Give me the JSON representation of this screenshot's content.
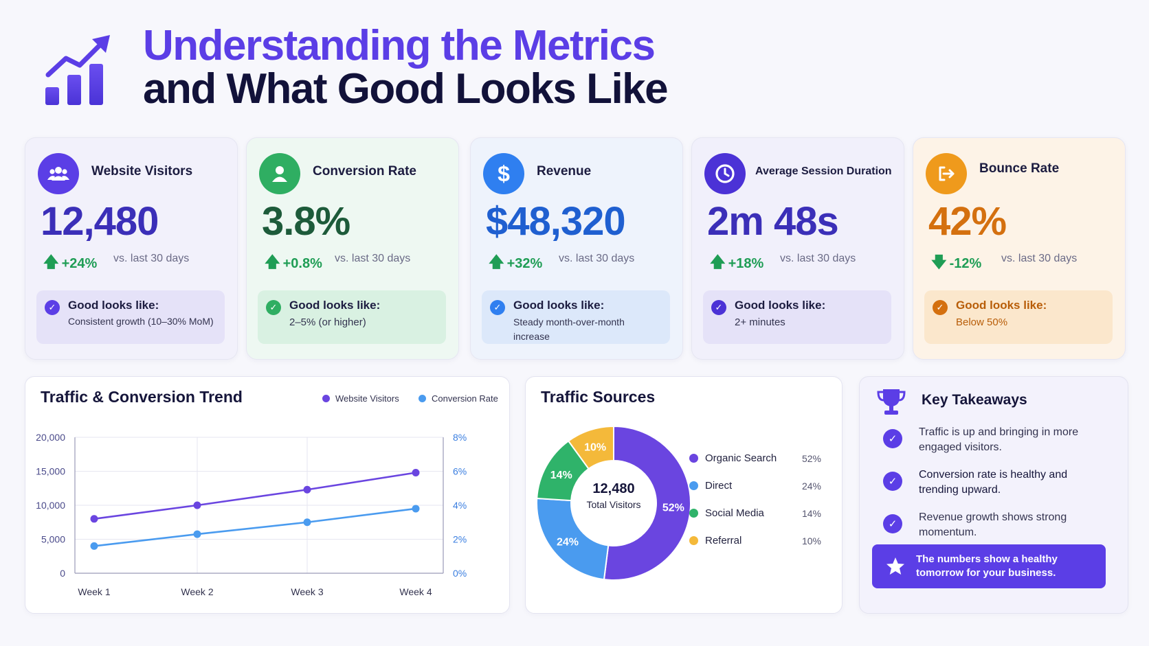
{
  "header": {
    "title_line1": "Understanding the Metrics",
    "title_line2": "and What Good Looks Like",
    "logo_icon": "chart-growth-icon"
  },
  "colors": {
    "accent": "#5b3ee6",
    "visitors_series": "#6a45e0",
    "conversion_series": "#4a9bef",
    "organic": "#6a45e0",
    "direct": "#4a9bef",
    "social": "#2fb36a",
    "referral": "#f4b93a"
  },
  "metrics": [
    {
      "name": "Website Visitors",
      "value": "12,480",
      "change": "+24%",
      "direction": "up",
      "comparison": "vs. last 30 days",
      "good_title": "Good looks like:",
      "good_desc": "Consistent growth (10–30% MoM)",
      "icon": "users-icon"
    },
    {
      "name": "Conversion Rate",
      "value": "3.8%",
      "change": "+0.8%",
      "direction": "up",
      "comparison": "vs. last 30 days",
      "good_title": "Good looks like:",
      "good_desc": "2–5% (or higher)",
      "icon": "user-icon"
    },
    {
      "name": "Revenue",
      "value": "$48,320",
      "change": "+32%",
      "direction": "up",
      "comparison": "vs. last 30 days",
      "good_title": "Good looks like:",
      "good_desc": "Steady month-over-month increase",
      "icon": "dollar-icon"
    },
    {
      "name": "Average Session Duration",
      "value": "2m 48s",
      "change": "+18%",
      "direction": "up",
      "comparison": "vs. last 30 days",
      "good_title": "Good looks like:",
      "good_desc": "2+ minutes",
      "icon": "clock-icon"
    },
    {
      "name": "Bounce Rate",
      "value": "42%",
      "change": "-12%",
      "direction": "down",
      "comparison": "vs. last 30 days",
      "good_title": "Good looks like:",
      "good_desc": "Below 50%",
      "icon": "exit-icon"
    }
  ],
  "trend": {
    "title": "Traffic & Conversion Trend",
    "legend": [
      "Website Visitors",
      "Conversion Rate"
    ],
    "y_left_ticks": [
      "20,000",
      "15,000",
      "10,000",
      "5,000",
      "0"
    ],
    "y_right_ticks": [
      "8%",
      "6%",
      "4%",
      "2%",
      "0%"
    ],
    "x_ticks": [
      "Week 1",
      "Week 2",
      "Week 3",
      "Week 4"
    ]
  },
  "sources": {
    "title": "Traffic Sources",
    "center_value": "12,480",
    "center_label": "Total Visitors",
    "items": [
      {
        "label": "Organic Search",
        "pct": "52%"
      },
      {
        "label": "Direct",
        "pct": "24%"
      },
      {
        "label": "Social Media",
        "pct": "14%"
      },
      {
        "label": "Referral",
        "pct": "10%"
      }
    ]
  },
  "takeaways": {
    "title": "Key Takeaways",
    "items": [
      "Traffic is up and bringing in more engaged visitors.",
      "Conversion rate is healthy and trending upward.",
      "Revenue growth shows strong momentum."
    ],
    "banner": "The numbers show a healthy tomorrow for your business.",
    "icons": [
      "trophy-icon",
      "check-icon",
      "star-icon"
    ]
  },
  "chart_data": [
    {
      "type": "line",
      "title": "Traffic & Conversion Trend",
      "categories": [
        "Week 1",
        "Week 2",
        "Week 3",
        "Week 4"
      ],
      "series": [
        {
          "name": "Website Visitors",
          "axis": "left",
          "values": [
            8000,
            10000,
            12300,
            14800
          ]
        },
        {
          "name": "Conversion Rate",
          "axis": "right",
          "values": [
            1.6,
            2.3,
            3.0,
            3.8
          ]
        }
      ],
      "ylim_left": [
        0,
        20000
      ],
      "ylim_right": [
        0,
        8
      ],
      "grid": true,
      "legend": "top-right"
    },
    {
      "type": "pie",
      "title": "Traffic Sources",
      "labels": [
        "Organic Search",
        "Direct",
        "Social Media",
        "Referral"
      ],
      "values": [
        52,
        24,
        14,
        10
      ],
      "donut": true,
      "legend": "right"
    }
  ]
}
